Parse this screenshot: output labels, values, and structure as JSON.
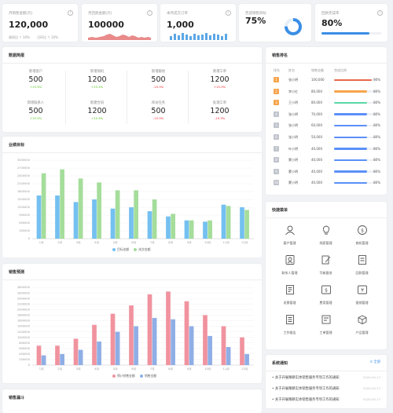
{
  "kpis": [
    {
      "label": "月销售金额(元)",
      "value": "120,000",
      "foot1": "周同比 ↑ 10%",
      "foot2": "日环比 ↑ 10%"
    },
    {
      "label": "月回款金额(元)",
      "value": "100000"
    },
    {
      "label": "本月成交订单",
      "value": "1,000"
    },
    {
      "label": "完成销售目标",
      "value": "75%",
      "progress": 0.75
    },
    {
      "label": "回款完成率",
      "value": "80%",
      "progress": 0.8
    }
  ],
  "data_summary": {
    "title": "数据简报",
    "stats": [
      {
        "label": "新增客户",
        "value": "500",
        "pct": "+15.3%",
        "dir": "up"
      },
      {
        "label": "新增商机",
        "value": "1200",
        "pct": "+15.3%",
        "dir": "up"
      },
      {
        "label": "新增跟进",
        "value": "500",
        "pct": "-15.3%",
        "dir": "down"
      },
      {
        "label": "新增工单",
        "value": "1200",
        "pct": "+15.3%",
        "dir": "down"
      },
      {
        "label": "新增联系人",
        "value": "500",
        "pct": "+15.3%",
        "dir": "up"
      },
      {
        "label": "新建合同",
        "value": "1200",
        "pct": "+15.3%",
        "dir": "up"
      },
      {
        "label": "拜访任务",
        "value": "500",
        "pct": "-15.3%",
        "dir": "down"
      },
      {
        "label": "处理工单",
        "value": "1200",
        "pct": "-15.3%",
        "dir": "down"
      }
    ]
  },
  "sales_ranking": {
    "title": "销售排名",
    "headers": [
      "排名",
      "姓名",
      "销售金额",
      "完成比例"
    ],
    "rows": [
      {
        "rank": "1",
        "name": "张小明",
        "amount": "100,000",
        "pct": "90%",
        "progress": 0.9,
        "color": "#e8684a"
      },
      {
        "rank": "2",
        "name": "李小红",
        "amount": "80,000",
        "pct": "80%",
        "progress": 0.8,
        "color": "#f6a54c"
      },
      {
        "rank": "3",
        "name": "王小明",
        "amount": "80,000",
        "pct": "80%",
        "progress": 0.8,
        "color": "#5ad8a6"
      },
      {
        "rank": "4",
        "name": "张小明",
        "amount": "70,000",
        "pct": "80%",
        "progress": 0.8,
        "color": "#5b8ff9"
      },
      {
        "rank": "5",
        "name": "张小明",
        "amount": "60,000",
        "pct": "80%",
        "progress": 0.8,
        "color": "#5b8ff9"
      },
      {
        "rank": "6",
        "name": "张小明",
        "amount": "50,000",
        "pct": "80%",
        "progress": 0.8,
        "color": "#5b8ff9"
      },
      {
        "rank": "7",
        "name": "叶小明",
        "amount": "40,000",
        "pct": "80%",
        "progress": 0.8,
        "color": "#5b8ff9"
      },
      {
        "rank": "8",
        "name": "蒙小明",
        "amount": "40,000",
        "pct": "80%",
        "progress": 0.8,
        "color": "#5b8ff9"
      },
      {
        "rank": "9",
        "name": "蒙小明",
        "amount": "40,000",
        "pct": "80%",
        "progress": 0.8,
        "color": "#5b8ff9"
      },
      {
        "rank": "10",
        "name": "蒙小明",
        "amount": "40,000",
        "pct": "80%",
        "progress": 0.8,
        "color": "#5b8ff9"
      }
    ]
  },
  "quick_menu": {
    "title": "快捷菜单",
    "items": [
      {
        "label": "客户管理",
        "icon": "user-icon"
      },
      {
        "label": "线索管理",
        "icon": "lightbulb-icon"
      },
      {
        "label": "商机管理",
        "icon": "money-icon"
      },
      {
        "label": "联系人管理",
        "icon": "contact-icon"
      },
      {
        "label": "写新跟进",
        "icon": "edit-icon"
      },
      {
        "label": "回款管理",
        "icon": "receipt-icon"
      },
      {
        "label": "发票管理",
        "icon": "invoice-icon"
      },
      {
        "label": "费用管理",
        "icon": "expense-icon"
      },
      {
        "label": "报销管理",
        "icon": "yen-icon"
      },
      {
        "label": "工作报告",
        "icon": "report-icon"
      },
      {
        "label": "工单管理",
        "icon": "ticket-icon"
      },
      {
        "label": "产品管理",
        "icon": "box-icon"
      }
    ]
  },
  "notices": {
    "title": "系统通知",
    "more": "全部",
    "items": [
      {
        "text": "关于开展精耕实体销售服务专项工作的通知",
        "date": "2020-04-17"
      },
      {
        "text": "关于开展精耕实体销售服务专项工作的通知",
        "date": "2020-04-17"
      },
      {
        "text": "关于开展精耕实体销售服务专项工作的通知",
        "date": "2020-04-17"
      }
    ]
  },
  "funnel": {
    "title": "销售漏斗"
  },
  "chart_data": [
    {
      "type": "bar",
      "title": "业绩目标",
      "categories": [
        "1月",
        "2月",
        "3月",
        "4月",
        "5月",
        "6月",
        "7月",
        "8月",
        "9月",
        "10月",
        "11月",
        "12月"
      ],
      "yticks": [
        "0",
        "300000",
        "600000",
        "900000",
        "1200000",
        "1500000",
        "1800000",
        "2100000",
        "2400000",
        "2700000",
        "3000000"
      ],
      "ylim": [
        0,
        3000000
      ],
      "series": [
        {
          "name": "目标金额",
          "color": "#74c0f0",
          "values": [
            1650000,
            1650000,
            1400000,
            1500000,
            1150000,
            1200000,
            1050000,
            850000,
            700000,
            650000,
            1300000,
            1200000
          ]
        },
        {
          "name": "成交金额",
          "color": "#a5dd9b",
          "values": [
            2500000,
            2650000,
            2300000,
            2150000,
            1850000,
            1850000,
            1500000,
            950000,
            700000,
            700000,
            1250000,
            1100000
          ]
        }
      ],
      "legend_position": "bottom"
    },
    {
      "type": "bar",
      "title": "销售预测",
      "categories": [
        "1月",
        "2月",
        "3月",
        "4月",
        "5月",
        "6月",
        "7月",
        "8月",
        "9月",
        "10月",
        "11月",
        "12月"
      ],
      "yticks": [
        "0",
        "200000",
        "400000",
        "600000",
        "800000",
        "1000000",
        "1200000",
        "1400000",
        "1600000",
        "1800000",
        "2000000",
        "2200000",
        "2400000",
        "2600000",
        "2800000"
      ],
      "ylim": [
        0,
        2800000
      ],
      "series": [
        {
          "name": "预计销售金额",
          "color": "#f0939f",
          "values": [
            700000,
            700000,
            950000,
            1450000,
            1850000,
            2150000,
            2550000,
            2650000,
            2300000,
            1800000,
            1400000,
            1000000
          ]
        },
        {
          "name": "销售金额",
          "color": "#8faee6",
          "values": [
            350000,
            400000,
            550000,
            850000,
            1200000,
            1400000,
            1700000,
            1650000,
            1400000,
            1050000,
            650000,
            400000
          ]
        }
      ],
      "legend_position": "bottom"
    }
  ]
}
